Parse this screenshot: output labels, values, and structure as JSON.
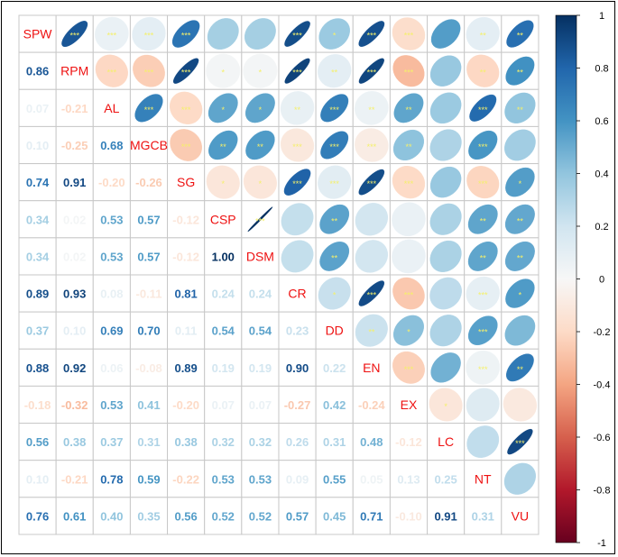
{
  "chart_data": {
    "type": "heatmap",
    "title": "",
    "variables": [
      "SPW",
      "RPM",
      "AL",
      "MGCB",
      "SG",
      "CSP",
      "DSM",
      "CR",
      "DD",
      "EN",
      "EX",
      "LC",
      "NT",
      "VU"
    ],
    "lower_coefficients": [
      [],
      [
        "0.86"
      ],
      [
        "0.07",
        "-0.21"
      ],
      [
        "0.10",
        "-0.25",
        "0.68"
      ],
      [
        "0.74",
        "0.91",
        "-0.20",
        "-0.26"
      ],
      [
        "0.34",
        "0.02",
        "0.53",
        "0.57",
        "-0.12"
      ],
      [
        "0.34",
        "0.02",
        "0.53",
        "0.57",
        "-0.12",
        "1.00"
      ],
      [
        "0.89",
        "0.93",
        "0.08",
        "-0.11",
        "0.81",
        "0.24",
        "0.24"
      ],
      [
        "0.37",
        "0.10",
        "0.69",
        "0.70",
        "0.11",
        "0.54",
        "0.54",
        "0.23"
      ],
      [
        "0.88",
        "0.92",
        "0.06",
        "-0.08",
        "0.89",
        "0.19",
        "0.19",
        "0.90",
        "0.22"
      ],
      [
        "-0.18",
        "-0.32",
        "0.53",
        "0.41",
        "-0.20",
        "0.07",
        "0.07",
        "-0.27",
        "0.42",
        "-0.24"
      ],
      [
        "0.56",
        "0.38",
        "0.37",
        "0.31",
        "0.38",
        "0.32",
        "0.32",
        "0.26",
        "0.31",
        "0.48",
        "-0.12"
      ],
      [
        "0.10",
        "-0.21",
        "0.78",
        "0.59",
        "-0.22",
        "0.53",
        "0.53",
        "0.09",
        "0.55",
        "0.05",
        "0.13",
        "0.25"
      ],
      [
        "0.76",
        "0.61",
        "0.40",
        "0.35",
        "0.56",
        "0.52",
        "0.52",
        "0.57",
        "0.45",
        "0.71",
        "-0.10",
        "0.91",
        "0.31"
      ]
    ],
    "upper_significance": [
      [
        "",
        "***",
        "***",
        "***",
        "***",
        "",
        "",
        "***",
        "*",
        "***",
        "***",
        "",
        "**",
        "**"
      ],
      [
        "",
        "",
        "***",
        "***",
        "***",
        "*",
        "*",
        "***",
        "**",
        "***",
        "***",
        "",
        "**",
        "**"
      ],
      [
        "",
        "",
        "",
        "***",
        "***",
        "*",
        "*",
        "**",
        "***",
        "**",
        "**",
        "",
        "***",
        "**"
      ],
      [
        "",
        "",
        "",
        "",
        "***",
        "**",
        "**",
        "***",
        "***",
        "***",
        "**",
        "",
        "***",
        ""
      ],
      [
        "",
        "",
        "",
        "",
        "",
        "*",
        "*",
        "***",
        "***",
        "***",
        "***",
        "",
        "***",
        "*"
      ],
      [
        "",
        "",
        "",
        "",
        "",
        "",
        "***",
        "",
        "**",
        "",
        "",
        "",
        "**",
        "**"
      ],
      [
        "",
        "",
        "",
        "",
        "",
        "",
        "",
        "",
        "**",
        "",
        "",
        "",
        "**",
        "**"
      ],
      [
        "",
        "",
        "",
        "",
        "",
        "",
        "",
        "",
        "*",
        "***",
        "***",
        "",
        "***",
        "*"
      ],
      [
        "",
        "",
        "",
        "",
        "",
        "",
        "",
        "",
        "",
        "**",
        "*",
        "",
        "***",
        ""
      ],
      [
        "",
        "",
        "",
        "",
        "",
        "",
        "",
        "",
        "",
        "",
        "***",
        "",
        "***",
        "**"
      ],
      [
        "",
        "",
        "",
        "",
        "",
        "",
        "",
        "",
        "",
        "",
        "",
        "*",
        "",
        ""
      ],
      [
        "",
        "",
        "",
        "",
        "",
        "",
        "",
        "",
        "",
        "",
        "",
        "",
        "",
        "***"
      ],
      [
        "",
        "",
        "",
        "",
        "",
        "",
        "",
        "",
        "",
        "",
        "",
        "",
        "",
        ""
      ],
      [
        "",
        "",
        "",
        "",
        "",
        "",
        "",
        "",
        "",
        "",
        "",
        "",
        "",
        ""
      ]
    ],
    "colorbar": {
      "range": [
        -1,
        1
      ],
      "ticks": [
        "1",
        "0.8",
        "0.6",
        "0.4",
        "0.2",
        "0",
        "-0.2",
        "-0.4",
        "-0.6",
        "-0.8",
        "-1"
      ]
    },
    "colors": {
      "negative": "#67001f",
      "zero": "#f7f7f7",
      "positive": "#053061",
      "label": "#ee1111",
      "star": "#f5f06a",
      "grid": "#c8c8c8"
    }
  }
}
